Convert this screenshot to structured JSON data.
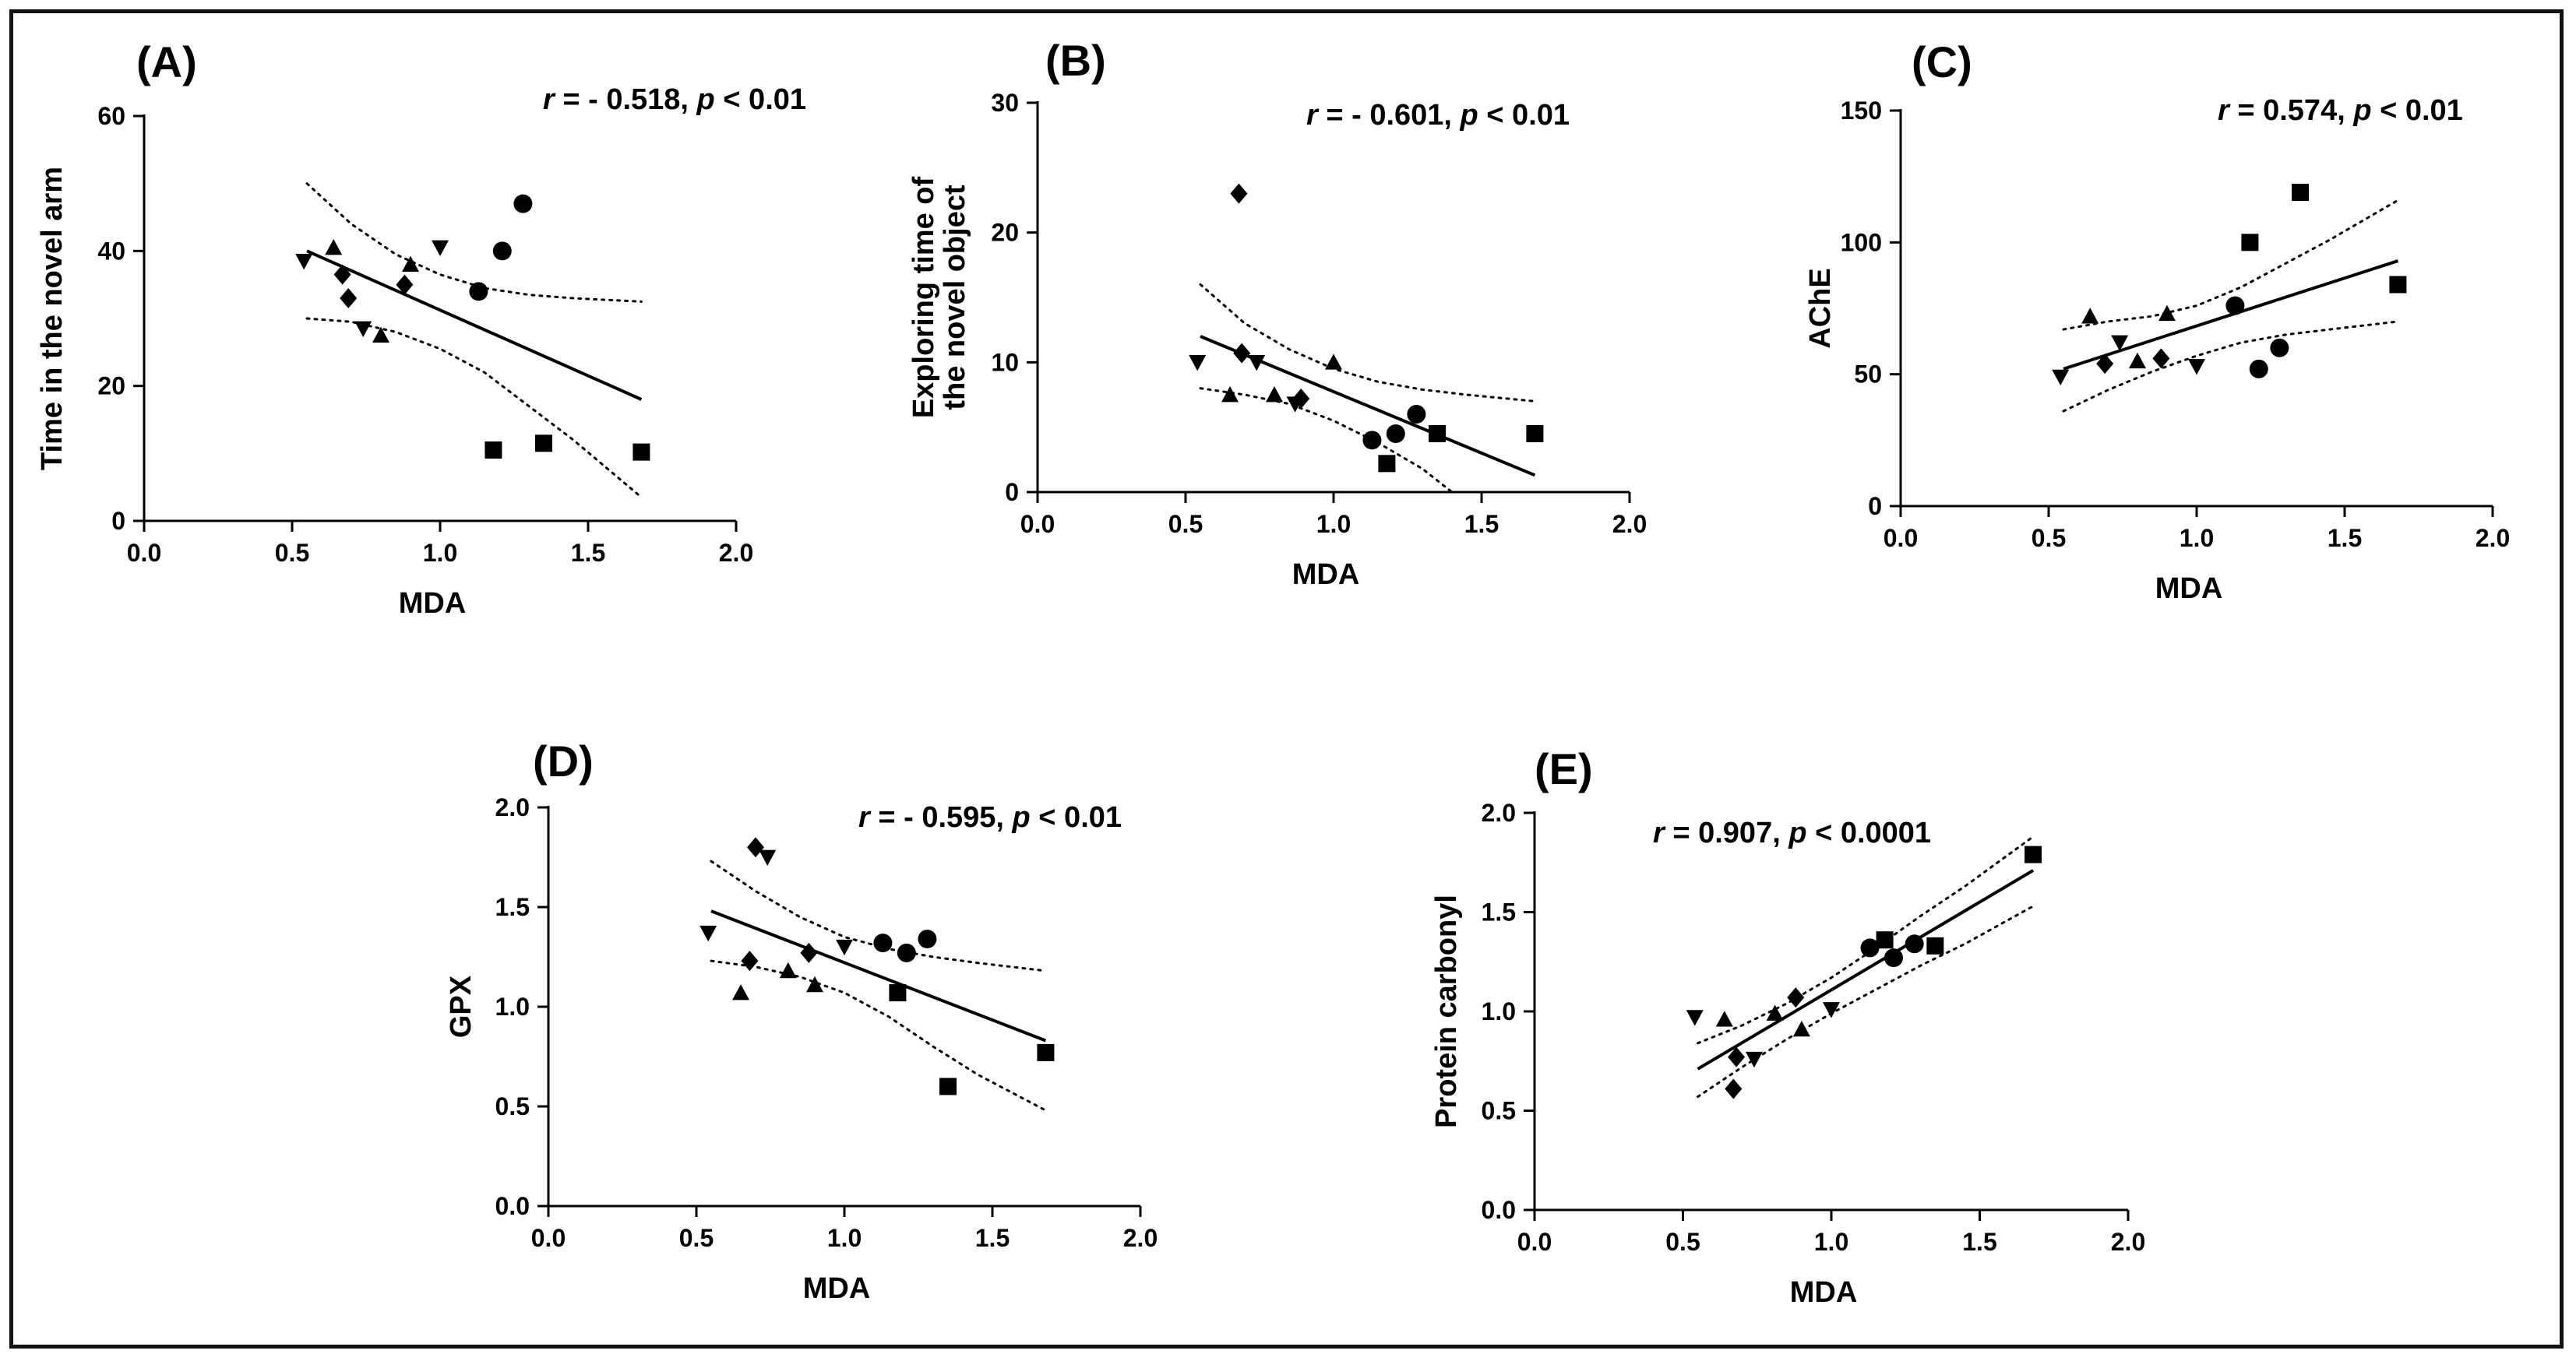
{
  "figure": {
    "border_color": "#111111",
    "marker_color": "#000000"
  },
  "chart_data": [
    {
      "type": "scatter",
      "panel_label": "(A)",
      "stat": {
        "r_label": "r",
        "r_value": " = - 0.518, ",
        "p_label": "p",
        "p_value": " < 0.01"
      },
      "xlabel": "MDA",
      "ylabel": "Time in the novel arm",
      "xlim": [
        0,
        2
      ],
      "ylim": [
        0,
        60
      ],
      "xticks": [
        "0.0",
        "0.5",
        "1.0",
        "1.5",
        "2.0"
      ],
      "yticks": [
        "0",
        "20",
        "40",
        "60"
      ],
      "points": [
        {
          "x": 0.54,
          "y": 38.5,
          "marker": "triangle-down"
        },
        {
          "x": 0.74,
          "y": 28.5,
          "marker": "triangle-down"
        },
        {
          "x": 1.0,
          "y": 40.5,
          "marker": "triangle-down"
        },
        {
          "x": 0.64,
          "y": 40.5,
          "marker": "triangle-up"
        },
        {
          "x": 0.8,
          "y": 27.5,
          "marker": "triangle-up"
        },
        {
          "x": 0.9,
          "y": 38.0,
          "marker": "triangle-up"
        },
        {
          "x": 0.67,
          "y": 36.5,
          "marker": "diamond"
        },
        {
          "x": 0.69,
          "y": 33.0,
          "marker": "diamond"
        },
        {
          "x": 0.88,
          "y": 35.0,
          "marker": "diamond"
        },
        {
          "x": 1.13,
          "y": 34.0,
          "marker": "circle"
        },
        {
          "x": 1.21,
          "y": 40.0,
          "marker": "circle"
        },
        {
          "x": 1.28,
          "y": 47.0,
          "marker": "circle"
        },
        {
          "x": 1.18,
          "y": 10.5,
          "marker": "square"
        },
        {
          "x": 1.35,
          "y": 11.5,
          "marker": "square"
        },
        {
          "x": 1.68,
          "y": 10.2,
          "marker": "square"
        }
      ],
      "fit": {
        "x": [
          0.55,
          1.68
        ],
        "y": [
          40.0,
          18.0
        ]
      },
      "ci_upper": {
        "x": [
          0.55,
          0.7,
          0.85,
          1.0,
          1.15,
          1.3,
          1.45,
          1.68
        ],
        "y": [
          50.0,
          44.0,
          39.5,
          36.5,
          34.5,
          33.5,
          33.0,
          32.5
        ]
      },
      "ci_lower": {
        "x": [
          0.55,
          0.7,
          0.85,
          1.0,
          1.15,
          1.3,
          1.45,
          1.68
        ],
        "y": [
          30.0,
          29.5,
          28.0,
          25.5,
          22.0,
          17.0,
          12.0,
          3.5
        ]
      }
    },
    {
      "type": "scatter",
      "panel_label": "(B)",
      "stat": {
        "r_label": "r",
        "r_value": " = - 0.601, ",
        "p_label": "p",
        "p_value": " < 0.01"
      },
      "xlabel": "MDA",
      "ylabel": "Exploring time of\nthe novel object",
      "xlim": [
        0,
        2
      ],
      "ylim": [
        0,
        30
      ],
      "xticks": [
        "0.0",
        "0.5",
        "1.0",
        "1.5",
        "2.0"
      ],
      "yticks": [
        "0",
        "10",
        "20",
        "30"
      ],
      "points": [
        {
          "x": 0.54,
          "y": 10.0,
          "marker": "triangle-down"
        },
        {
          "x": 0.74,
          "y": 10.0,
          "marker": "triangle-down"
        },
        {
          "x": 0.87,
          "y": 6.8,
          "marker": "triangle-down"
        },
        {
          "x": 0.65,
          "y": 7.5,
          "marker": "triangle-up"
        },
        {
          "x": 0.8,
          "y": 7.5,
          "marker": "triangle-up"
        },
        {
          "x": 1.0,
          "y": 10.0,
          "marker": "triangle-up"
        },
        {
          "x": 0.68,
          "y": 23.0,
          "marker": "diamond"
        },
        {
          "x": 0.69,
          "y": 10.7,
          "marker": "diamond"
        },
        {
          "x": 0.89,
          "y": 7.2,
          "marker": "diamond"
        },
        {
          "x": 1.13,
          "y": 4.0,
          "marker": "circle"
        },
        {
          "x": 1.21,
          "y": 4.5,
          "marker": "circle"
        },
        {
          "x": 1.28,
          "y": 6.0,
          "marker": "circle"
        },
        {
          "x": 1.18,
          "y": 2.2,
          "marker": "square"
        },
        {
          "x": 1.35,
          "y": 4.5,
          "marker": "square"
        },
        {
          "x": 1.68,
          "y": 4.5,
          "marker": "square"
        }
      ],
      "fit": {
        "x": [
          0.55,
          1.68
        ],
        "y": [
          12.0,
          1.3
        ]
      },
      "ci_upper": {
        "x": [
          0.55,
          0.7,
          0.85,
          1.0,
          1.15,
          1.3,
          1.45,
          1.68
        ],
        "y": [
          16.0,
          13.0,
          11.0,
          9.5,
          8.5,
          7.9,
          7.5,
          7.0
        ]
      },
      "ci_lower": {
        "x": [
          0.55,
          0.7,
          0.85,
          1.0,
          1.15,
          1.3,
          1.4
        ],
        "y": [
          8.0,
          7.5,
          6.8,
          5.5,
          3.8,
          1.8,
          0.0
        ]
      }
    },
    {
      "type": "scatter",
      "panel_label": "(C)",
      "stat": {
        "r_label": "r",
        "r_value": " = 0.574, ",
        "p_label": "p",
        "p_value": " < 0.01"
      },
      "xlabel": "MDA",
      "ylabel": "AChE",
      "xlim": [
        0,
        2
      ],
      "ylim": [
        0,
        150
      ],
      "xticks": [
        "0.0",
        "0.5",
        "1.0",
        "1.5",
        "2.0"
      ],
      "yticks": [
        "0",
        "50",
        "100",
        "150"
      ],
      "points": [
        {
          "x": 0.54,
          "y": 49.0,
          "marker": "triangle-down"
        },
        {
          "x": 0.74,
          "y": 62.0,
          "marker": "triangle-down"
        },
        {
          "x": 1.0,
          "y": 53.0,
          "marker": "triangle-down"
        },
        {
          "x": 0.64,
          "y": 72.0,
          "marker": "triangle-up"
        },
        {
          "x": 0.8,
          "y": 55.0,
          "marker": "triangle-up"
        },
        {
          "x": 0.9,
          "y": 73.0,
          "marker": "triangle-up"
        },
        {
          "x": 0.69,
          "y": 54.0,
          "marker": "diamond"
        },
        {
          "x": 0.88,
          "y": 56.0,
          "marker": "diamond"
        },
        {
          "x": 1.13,
          "y": 76.0,
          "marker": "circle"
        },
        {
          "x": 1.21,
          "y": 52.0,
          "marker": "circle"
        },
        {
          "x": 1.28,
          "y": 60.0,
          "marker": "circle"
        },
        {
          "x": 1.18,
          "y": 100.0,
          "marker": "square"
        },
        {
          "x": 1.35,
          "y": 119.0,
          "marker": "square"
        },
        {
          "x": 1.68,
          "y": 84.0,
          "marker": "square"
        }
      ],
      "fit": {
        "x": [
          0.55,
          1.68
        ],
        "y": [
          52.0,
          93.0
        ]
      },
      "ci_upper": {
        "x": [
          0.55,
          0.7,
          0.85,
          1.0,
          1.15,
          1.3,
          1.45,
          1.68
        ],
        "y": [
          67.0,
          70.0,
          72.0,
          76.0,
          83.0,
          92.0,
          101.0,
          116.0
        ]
      },
      "ci_lower": {
        "x": [
          0.55,
          0.7,
          0.85,
          1.0,
          1.15,
          1.3,
          1.45,
          1.68
        ],
        "y": [
          36.0,
          44.0,
          51.0,
          57.0,
          62.0,
          65.0,
          67.0,
          70.0
        ]
      }
    },
    {
      "type": "scatter",
      "panel_label": "(D)",
      "stat": {
        "r_label": "r",
        "r_value": " = - 0.595, ",
        "p_label": "p",
        "p_value": " < 0.01"
      },
      "xlabel": "MDA",
      "ylabel": "GPX",
      "xlim": [
        0,
        2
      ],
      "ylim": [
        0,
        2
      ],
      "xticks": [
        "0.0",
        "0.5",
        "1.0",
        "1.5",
        "2.0"
      ],
      "yticks": [
        "0.0",
        "0.5",
        "1.0",
        "1.5",
        "2.0"
      ],
      "points": [
        {
          "x": 0.54,
          "y": 1.37,
          "marker": "triangle-down"
        },
        {
          "x": 0.74,
          "y": 1.75,
          "marker": "triangle-down"
        },
        {
          "x": 1.0,
          "y": 1.3,
          "marker": "triangle-down"
        },
        {
          "x": 0.65,
          "y": 1.07,
          "marker": "triangle-up"
        },
        {
          "x": 0.81,
          "y": 1.18,
          "marker": "triangle-up"
        },
        {
          "x": 0.9,
          "y": 1.11,
          "marker": "triangle-up"
        },
        {
          "x": 0.68,
          "y": 1.23,
          "marker": "diamond"
        },
        {
          "x": 0.7,
          "y": 1.8,
          "marker": "diamond"
        },
        {
          "x": 0.88,
          "y": 1.27,
          "marker": "diamond"
        },
        {
          "x": 1.13,
          "y": 1.32,
          "marker": "circle"
        },
        {
          "x": 1.21,
          "y": 1.27,
          "marker": "circle"
        },
        {
          "x": 1.28,
          "y": 1.34,
          "marker": "circle"
        },
        {
          "x": 1.18,
          "y": 1.07,
          "marker": "square"
        },
        {
          "x": 1.35,
          "y": 0.6,
          "marker": "square"
        },
        {
          "x": 1.68,
          "y": 0.77,
          "marker": "square"
        }
      ],
      "fit": {
        "x": [
          0.55,
          1.68
        ],
        "y": [
          1.48,
          0.83
        ]
      },
      "ci_upper": {
        "x": [
          0.55,
          0.7,
          0.85,
          1.0,
          1.15,
          1.3,
          1.45,
          1.68
        ],
        "y": [
          1.73,
          1.58,
          1.45,
          1.35,
          1.29,
          1.25,
          1.22,
          1.18
        ]
      },
      "ci_lower": {
        "x": [
          0.55,
          0.7,
          0.85,
          1.0,
          1.15,
          1.3,
          1.45,
          1.68
        ],
        "y": [
          1.23,
          1.2,
          1.15,
          1.07,
          0.95,
          0.8,
          0.66,
          0.48
        ]
      }
    },
    {
      "type": "scatter",
      "panel_label": "(E)",
      "stat": {
        "r_label": "r",
        "r_value": " = 0.907, ",
        "p_label": "p",
        "p_value": " < 0.0001"
      },
      "xlabel": "MDA",
      "ylabel": "Protein carbonyl",
      "xlim": [
        0,
        2
      ],
      "ylim": [
        0,
        2
      ],
      "xticks": [
        "0.0",
        "0.5",
        "1.0",
        "1.5",
        "2.0"
      ],
      "yticks": [
        "0.0",
        "0.5",
        "1.0",
        "1.5",
        "2.0"
      ],
      "points": [
        {
          "x": 0.54,
          "y": 0.97,
          "marker": "triangle-down"
        },
        {
          "x": 0.74,
          "y": 0.76,
          "marker": "triangle-down"
        },
        {
          "x": 1.0,
          "y": 1.01,
          "marker": "triangle-down"
        },
        {
          "x": 0.64,
          "y": 0.96,
          "marker": "triangle-up"
        },
        {
          "x": 0.81,
          "y": 0.99,
          "marker": "triangle-up"
        },
        {
          "x": 0.9,
          "y": 0.91,
          "marker": "triangle-up"
        },
        {
          "x": 0.67,
          "y": 0.61,
          "marker": "diamond"
        },
        {
          "x": 0.68,
          "y": 0.77,
          "marker": "diamond"
        },
        {
          "x": 0.88,
          "y": 1.07,
          "marker": "diamond"
        },
        {
          "x": 1.13,
          "y": 1.32,
          "marker": "circle"
        },
        {
          "x": 1.21,
          "y": 1.27,
          "marker": "circle"
        },
        {
          "x": 1.28,
          "y": 1.34,
          "marker": "circle"
        },
        {
          "x": 1.18,
          "y": 1.36,
          "marker": "square"
        },
        {
          "x": 1.35,
          "y": 1.33,
          "marker": "square"
        },
        {
          "x": 1.68,
          "y": 1.79,
          "marker": "square"
        }
      ],
      "fit": {
        "x": [
          0.55,
          1.68
        ],
        "y": [
          0.71,
          1.71
        ]
      },
      "ci_upper": {
        "x": [
          0.55,
          0.7,
          0.85,
          1.0,
          1.15,
          1.3,
          1.45,
          1.68
        ],
        "y": [
          0.84,
          0.93,
          1.04,
          1.17,
          1.32,
          1.48,
          1.63,
          1.88
        ]
      },
      "ci_lower": {
        "x": [
          0.55,
          0.7,
          0.85,
          1.0,
          1.15,
          1.3,
          1.45,
          1.68
        ],
        "y": [
          0.57,
          0.72,
          0.86,
          0.99,
          1.11,
          1.23,
          1.34,
          1.53
        ]
      }
    }
  ]
}
